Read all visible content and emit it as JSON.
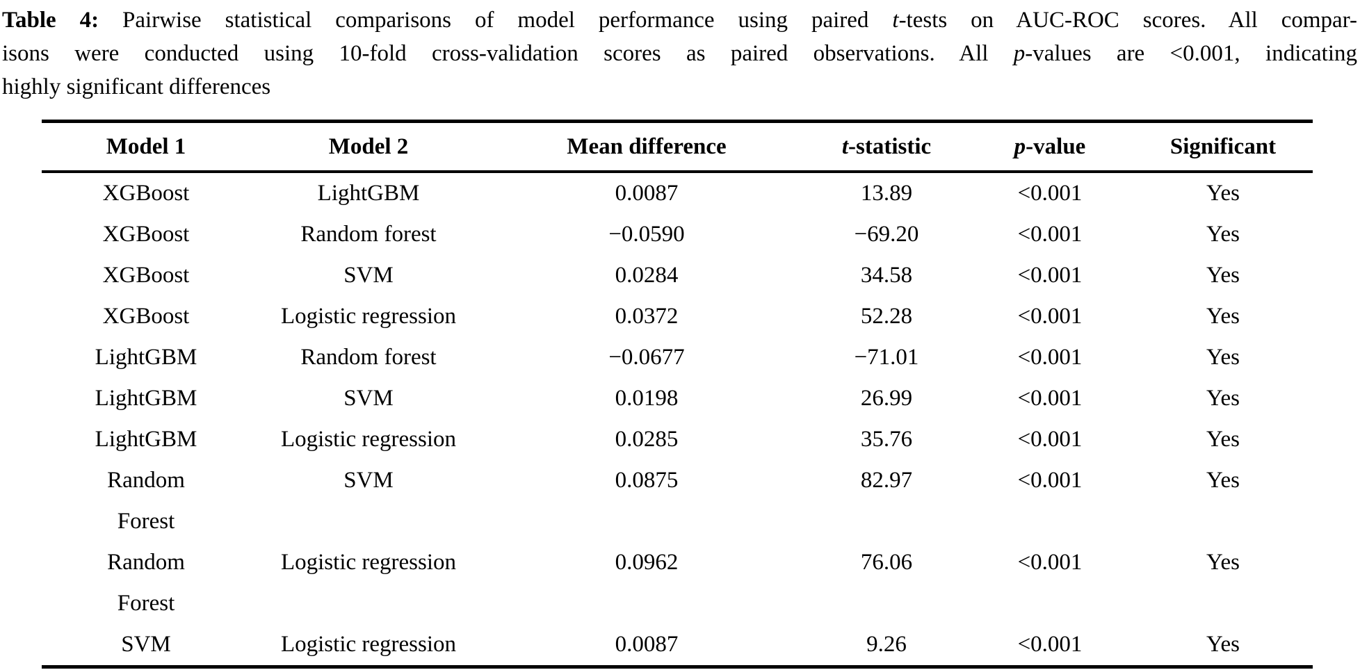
{
  "caption": {
    "lines": [
      [
        {
          "text": "Table 4:",
          "bold": true
        },
        {
          "text": " Pairwise statistical comparisons of model performance using paired "
        },
        {
          "text": "t",
          "italic": true
        },
        {
          "text": "-tests on AUC-ROC scores. All compar-"
        }
      ],
      [
        {
          "text": "isons were conducted using 10-fold cross-validation scores as paired observations. All "
        },
        {
          "text": "p",
          "italic": true
        },
        {
          "text": "-values are <0.001, indicating"
        }
      ],
      [
        {
          "text": "highly significant differences"
        }
      ]
    ]
  },
  "table": {
    "columns": [
      {
        "id": "model1",
        "segments": [
          {
            "text": "Model 1"
          }
        ]
      },
      {
        "id": "model2",
        "segments": [
          {
            "text": "Model 2"
          }
        ]
      },
      {
        "id": "mean_difference",
        "segments": [
          {
            "text": "Mean difference"
          }
        ]
      },
      {
        "id": "t_statistic",
        "segments": [
          {
            "text": "t",
            "italic": true
          },
          {
            "text": "-statistic"
          }
        ]
      },
      {
        "id": "p_value",
        "segments": [
          {
            "text": "p",
            "italic": true
          },
          {
            "text": "-value"
          }
        ]
      },
      {
        "id": "significant",
        "segments": [
          {
            "text": "Significant"
          }
        ]
      }
    ],
    "rows": [
      [
        "XGBoost",
        "LightGBM",
        "0.0087",
        "13.89",
        "<0.001",
        "Yes"
      ],
      [
        "XGBoost",
        "Random forest",
        "−0.0590",
        "−69.20",
        "<0.001",
        "Yes"
      ],
      [
        "XGBoost",
        "SVM",
        "0.0284",
        "34.58",
        "<0.001",
        "Yes"
      ],
      [
        "XGBoost",
        "Logistic regression",
        "0.0372",
        "52.28",
        "<0.001",
        "Yes"
      ],
      [
        "LightGBM",
        "Random forest",
        "−0.0677",
        "−71.01",
        "<0.001",
        "Yes"
      ],
      [
        "LightGBM",
        "SVM",
        "0.0198",
        "26.99",
        "<0.001",
        "Yes"
      ],
      [
        "LightGBM",
        "Logistic regression",
        "0.0285",
        "35.76",
        "<0.001",
        "Yes"
      ],
      [
        "Random\nForest",
        "SVM",
        "0.0875",
        "82.97",
        "<0.001",
        "Yes"
      ],
      [
        "Random\nForest",
        "Logistic regression",
        "0.0962",
        "76.06",
        "<0.001",
        "Yes"
      ],
      [
        "SVM",
        "Logistic regression",
        "0.0087",
        "9.26",
        "<0.001",
        "Yes"
      ]
    ]
  }
}
